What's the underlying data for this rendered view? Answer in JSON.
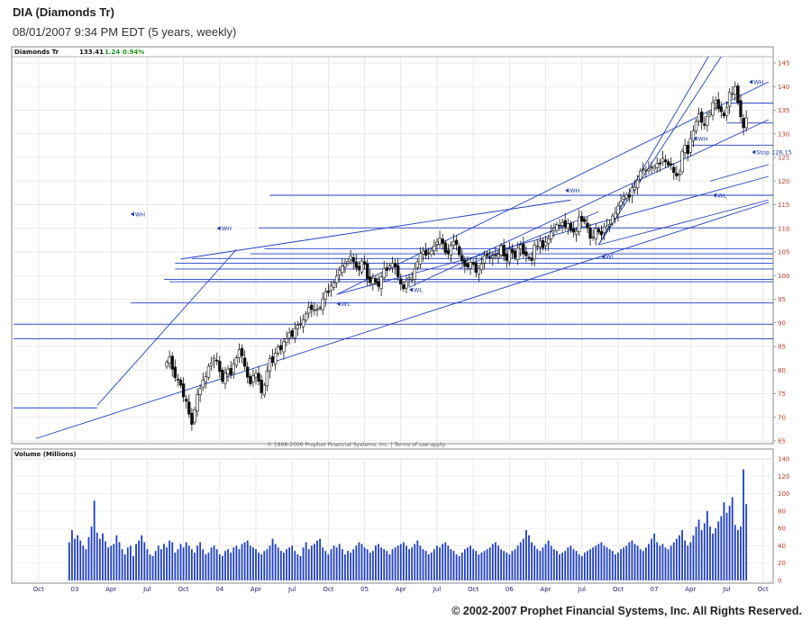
{
  "header": {
    "title": "DIA (Diamonds Tr)",
    "subtitle": "08/01/2007 9:34 PM EDT (5 years, weekly)"
  },
  "copyright": "© 2002-2007 Prophet Financial Systems, Inc. All Rights Reserved.",
  "chart_data": {
    "type": "candlestick",
    "quote": {
      "symbol": "Diamonds Tr",
      "last": "133.41",
      "change": "1.24",
      "change_pct": "0.94%"
    },
    "price_axis": {
      "min": 65,
      "max": 145,
      "ticks": [
        "145",
        "140",
        "135",
        "130",
        "125",
        "120",
        "115",
        "110",
        "105",
        "100",
        "95",
        "90",
        "85",
        "80",
        "75",
        "70",
        "65"
      ]
    },
    "volume_axis": {
      "label": "Volume (Millions)",
      "min": 0,
      "max": 140,
      "ticks": [
        "140",
        "120",
        "100",
        "80",
        "60",
        "40",
        "20",
        "0"
      ]
    },
    "x_axis": {
      "ticks": [
        "Oct",
        "03",
        "Apr",
        "Jul",
        "Oct",
        "04",
        "Apr",
        "Jul",
        "Oct",
        "05",
        "Apr",
        "Jul",
        "Oct",
        "06",
        "Apr",
        "Jul",
        "Oct",
        "07",
        "Apr",
        "Jul",
        "Oct"
      ]
    },
    "price_note": "© 1998-2006 Prophet Financial Systems, Inc. | Terms of use apply.",
    "markers": [
      {
        "label": "WH",
        "price": 113,
        "week": 42
      },
      {
        "label": "WH",
        "price": 110,
        "week": 73
      },
      {
        "label": "WL",
        "price": 94,
        "week": 116
      },
      {
        "label": "WL",
        "price": 97,
        "week": 142
      },
      {
        "label": "WH",
        "price": 118,
        "week": 198
      },
      {
        "label": "WL",
        "price": 104,
        "week": 211
      },
      {
        "label": "WH",
        "price": 129,
        "week": 244
      },
      {
        "label": "WL",
        "price": 117,
        "week": 251
      },
      {
        "label": "WH",
        "price": 141,
        "week": 264
      },
      {
        "label": "Stop 126.15",
        "price": 126.15,
        "week": 265
      }
    ],
    "horizontal_levels": [
      {
        "price": 136.5,
        "from_week": 256
      },
      {
        "price": 132.3,
        "from_week": 256
      },
      {
        "price": 127.6,
        "from_week": 243
      },
      {
        "price": 117.0,
        "from_week": 92
      },
      {
        "price": 110.1,
        "from_week": 88
      },
      {
        "price": 105.7,
        "from_week": 90
      },
      {
        "price": 104.6,
        "from_week": 85
      },
      {
        "price": 103.6,
        "from_week": 64
      },
      {
        "price": 102.6,
        "from_week": 58
      },
      {
        "price": 101.4,
        "from_week": 58
      },
      {
        "price": 99.2,
        "from_week": 54
      },
      {
        "price": 98.7,
        "from_week": 56
      },
      {
        "price": 94.2,
        "from_week": 42
      },
      {
        "price": 89.7,
        "from_week": 0
      },
      {
        "price": 86.6,
        "from_week": 0
      },
      {
        "price": 72.0,
        "from_week": 0,
        "to_week": 30
      }
    ],
    "trend_lines": [
      {
        "w1": 8,
        "p1": 65.5,
        "w2": 271,
        "p2": 115.5
      },
      {
        "w1": 116,
        "p1": 96.0,
        "w2": 271,
        "p2": 121.0
      },
      {
        "w1": 116,
        "p1": 96.0,
        "w2": 271,
        "p2": 141.0
      },
      {
        "w1": 142,
        "p1": 97.5,
        "w2": 271,
        "p2": 133.0
      },
      {
        "w1": 30,
        "p1": 72.5,
        "w2": 80,
        "p2": 105.5
      },
      {
        "w1": 60,
        "p1": 103.5,
        "w2": 200,
        "p2": 116.0
      },
      {
        "w1": 210,
        "p1": 106.5,
        "w2": 271,
        "p2": 116.0
      },
      {
        "w1": 210,
        "p1": 106.5,
        "w2": 258,
        "p2": 150.0
      },
      {
        "w1": 210,
        "p1": 106.5,
        "w2": 253,
        "p2": 150.0
      },
      {
        "w1": 160,
        "p1": 101.5,
        "w2": 210,
        "p2": 113.5
      },
      {
        "w1": 250,
        "p1": 120.0,
        "w2": 271,
        "p2": 123.5
      }
    ],
    "weekly_ohlc": {
      "start_week": "2002-08-05",
      "weeks": 261,
      "close": [
        81.6,
        82.8,
        80.2,
        78.4,
        77.9,
        76.8,
        74.3,
        73.4,
        70.7,
        68.5,
        71.6,
        74.8,
        76.1,
        77.9,
        78.6,
        80.8,
        81.5,
        82.4,
        81.9,
        79.7,
        77.6,
        79.3,
        80.2,
        79.0,
        81.3,
        82.6,
        84.3,
        83.0,
        80.8,
        78.5,
        77.1,
        78.8,
        79.3,
        77.6,
        75.2,
        76.8,
        79.7,
        82.4,
        81.6,
        83.6,
        84.9,
        84.3,
        86.0,
        86.6,
        87.9,
        87.1,
        88.8,
        89.5,
        89.6,
        90.7,
        91.9,
        93.3,
        92.8,
        92.7,
        92.9,
        93.2,
        95.1,
        96.6,
        96.4,
        97.8,
        98.5,
        99.9,
        101.1,
        102.0,
        102.5,
        103.0,
        104.1,
        102.9,
        101.7,
        101.2,
        103.1,
        102.4,
        99.3,
        98.5,
        99.4,
        98.5,
        97.7,
        99.7,
        101.5,
        101.1,
        102.0,
        102.6,
        101.8,
        99.8,
        98.2,
        97.2,
        98.8,
        99.5,
        99.2,
        101.4,
        102.9,
        104.7,
        105.2,
        104.3,
        104.8,
        105.3,
        106.3,
        107.1,
        107.9,
        106.8,
        104.9,
        104.6,
        106.4,
        107.2,
        106.6,
        104.4,
        103.1,
        102.1,
        101.8,
        102.8,
        102.4,
        100.7,
        101.4,
        102.5,
        104.2,
        104.2,
        103.7,
        104.1,
        104.3,
        104.5,
        106.3,
        104.1,
        103.2,
        105.6,
        104.9,
        103.8,
        105.8,
        106.5,
        104.6,
        104.2,
        103.7,
        103.2,
        106.5,
        106.2,
        107.3,
        105.9,
        107.1,
        107.8,
        109.2,
        110.0,
        110.8,
        110.5,
        111.2,
        110.3,
        111.0,
        109.6,
        109.2,
        109.4,
        112.4,
        111.5,
        111.4,
        110.1,
        107.9,
        108.2,
        110.0,
        109.2,
        108.6,
        110.3,
        110.5,
        110.8,
        112.6,
        113.2,
        114.7,
        115.7,
        116.7,
        117.1,
        116.6,
        118.6,
        118.7,
        120.2,
        122.1,
        122.6,
        122.3,
        122.6,
        123.0,
        123.0,
        123.7,
        123.6,
        124.8,
        124.1,
        123.4,
        123.4,
        121.8,
        121.1,
        121.5,
        126.3,
        127.6,
        125.8,
        129.0,
        130.7,
        132.6,
        134.2,
        132.4,
        131.8,
        133.7,
        134.4,
        136.6,
        137.1,
        135.3,
        134.7,
        133.8,
        135.5,
        138.8,
        138.5,
        140.0,
        136.6,
        133.6,
        131.3,
        133.4
      ],
      "open_offsets": "derived in script",
      "note": "later weeks rendered by script"
    },
    "weekly_volume_millions": [
      44,
      58,
      48,
      52,
      46,
      40,
      36,
      50,
      62,
      92,
      55,
      48,
      54,
      45,
      38,
      40,
      42,
      52,
      44,
      36,
      30,
      38,
      40,
      28,
      42,
      46,
      52,
      44,
      36,
      30,
      28,
      34,
      40,
      36,
      42,
      38,
      46,
      44,
      32,
      36,
      42,
      38,
      44,
      40,
      36,
      32,
      40,
      44,
      36,
      30,
      32,
      38,
      40,
      36,
      30,
      28,
      34,
      36,
      32,
      38,
      40,
      36,
      42,
      44,
      46,
      40,
      38,
      36,
      32,
      30,
      34,
      36,
      40,
      48,
      42,
      38,
      34,
      32,
      36,
      38,
      40,
      34,
      30,
      28,
      38,
      44,
      36,
      40,
      42,
      46,
      48,
      38,
      34,
      30,
      36,
      40,
      38,
      42,
      36,
      30,
      34,
      32,
      36,
      40,
      44,
      42,
      38,
      36,
      32,
      34,
      40,
      42,
      38,
      36,
      34,
      30,
      36,
      38,
      40,
      42,
      44,
      40,
      36,
      38,
      42,
      46,
      40,
      36,
      34,
      30,
      32,
      36,
      40,
      38,
      42,
      44,
      40,
      36,
      34,
      30,
      28,
      32,
      36,
      38,
      40,
      36,
      34,
      30,
      32,
      34,
      36,
      38,
      42,
      44,
      40,
      36,
      34,
      32,
      30,
      34,
      36,
      40,
      44,
      48,
      58,
      52,
      44,
      40,
      36,
      34,
      38,
      42,
      46,
      40,
      36,
      34,
      30,
      32,
      34,
      38,
      40,
      36,
      34,
      30,
      28,
      32,
      34,
      36,
      38,
      40,
      42,
      44,
      40,
      38,
      36,
      34,
      30,
      32,
      36,
      38,
      40,
      44,
      46,
      42,
      40,
      36,
      34,
      38,
      42,
      48,
      54,
      44,
      40,
      42,
      38,
      36,
      40,
      44,
      48,
      52,
      58,
      46,
      40,
      44,
      52,
      62,
      70,
      58,
      66,
      80,
      62,
      54,
      60,
      68,
      74,
      90,
      78,
      86,
      96,
      64,
      58,
      62,
      128,
      88
    ]
  }
}
